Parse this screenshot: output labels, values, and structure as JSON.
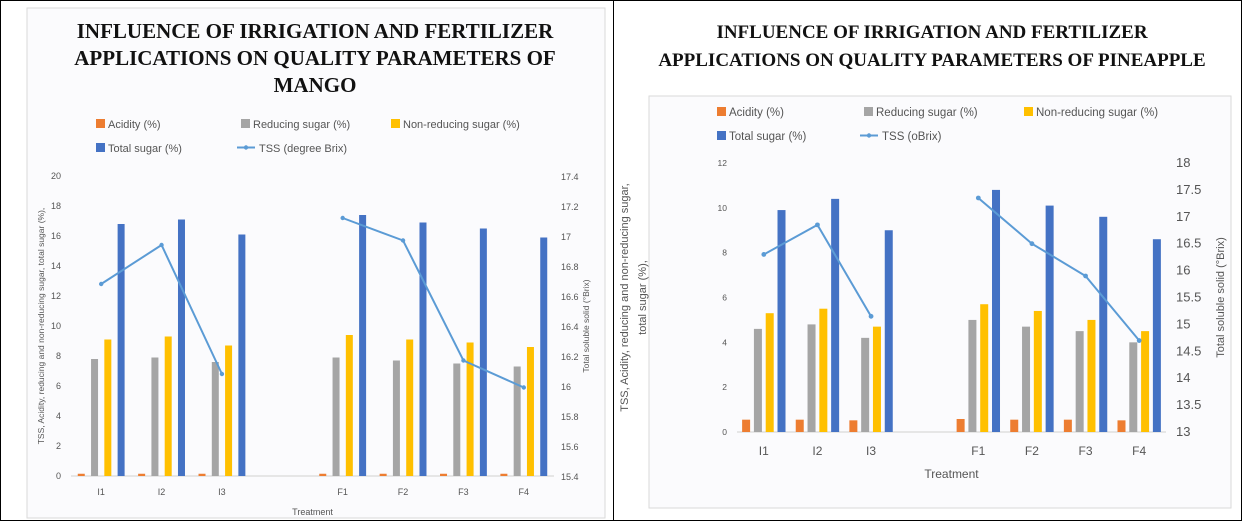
{
  "chart_data": [
    {
      "type": "bar",
      "title": "INFLUENCE OF IRRIGATION AND FERTILIZER APPLICATIONS ON QUALITY PARAMETERS OF MANGO",
      "title_lines": [
        "INFLUENCE OF IRRIGATION AND FERTILIZER",
        "APPLICATIONS ON QUALITY PARAMETERS OF",
        "MANGO"
      ],
      "xlabel": "Treatment",
      "ylabel": "TSS, Acidity, reducing and non-reducing sugar, total sugar (%),",
      "y2label": "Total soluble solid (°Brix)",
      "ylim": [
        0,
        20
      ],
      "y_ticks": [
        "0",
        "2",
        "4",
        "6",
        "8",
        "10",
        "12",
        "14",
        "16",
        "18",
        "20"
      ],
      "y2lim": [
        15.4,
        17.4
      ],
      "y2_ticks": [
        "15.4",
        "15.6",
        "15.8",
        "16",
        "16.2",
        "16.4",
        "16.6",
        "16.8",
        "17",
        "17.2",
        "17.4"
      ],
      "categories": [
        "I1",
        "I2",
        "I3",
        "",
        "F1",
        "F2",
        "F3",
        "F4"
      ],
      "grid": false,
      "legend_position": "top",
      "series": [
        {
          "name": "Acidity (%)",
          "kind": "bar",
          "color": "#ED7D31",
          "values": [
            0.15,
            0.15,
            0.15,
            null,
            0.15,
            0.15,
            0.15,
            0.15
          ]
        },
        {
          "name": "Reducing sugar (%)",
          "kind": "bar",
          "color": "#A5A5A5",
          "values": [
            7.8,
            7.9,
            7.6,
            null,
            7.9,
            7.7,
            7.5,
            7.3
          ]
        },
        {
          "name": "Non-reducing sugar (%)",
          "kind": "bar",
          "color": "#FFC000",
          "values": [
            9.1,
            9.3,
            8.7,
            null,
            9.4,
            9.1,
            8.9,
            8.6
          ]
        },
        {
          "name": "Total sugar (%)",
          "kind": "bar",
          "color": "#4472C4",
          "values": [
            16.8,
            17.1,
            16.1,
            null,
            17.4,
            16.9,
            16.5,
            15.9
          ]
        },
        {
          "name": "TSS (degree Brix)",
          "kind": "line",
          "axis": "right",
          "color": "#5B9BD5",
          "values": [
            16.68,
            16.94,
            16.08,
            null,
            17.12,
            16.97,
            16.17,
            15.99
          ]
        }
      ]
    },
    {
      "type": "bar",
      "title": "INFLUENCE OF IRRIGATION AND FERTILIZER APPLICATIONS ON QUALITY PARAMETERS OF PINEAPPLE",
      "title_lines": [
        "INFLUENCE OF IRRIGATION AND FERTILIZER",
        "APPLICATIONS ON QUALITY PARAMETERS OF PINEAPPLE"
      ],
      "xlabel": "Treatment",
      "ylabel_lines": [
        "TSS, Acidity, reducing and non-reducing sugar,",
        "total sugar (%),"
      ],
      "y2label": "Total soluble solid (°Brix)",
      "ylim": [
        0,
        12
      ],
      "y_ticks": [
        "0",
        "2",
        "4",
        "6",
        "8",
        "10",
        "12"
      ],
      "y2lim": [
        13,
        18
      ],
      "y2_ticks": [
        "13",
        "13.5",
        "14",
        "14.5",
        "15",
        "15.5",
        "16",
        "16.5",
        "17",
        "17.5",
        "18"
      ],
      "categories": [
        "I1",
        "I2",
        "I3",
        "",
        "F1",
        "F2",
        "F3",
        "F4"
      ],
      "grid": false,
      "legend_position": "top",
      "series": [
        {
          "name": "Acidity (%)",
          "kind": "bar",
          "color": "#ED7D31",
          "values": [
            0.55,
            0.55,
            0.52,
            null,
            0.58,
            0.55,
            0.55,
            0.52
          ]
        },
        {
          "name": "Reducing sugar (%)",
          "kind": "bar",
          "color": "#A5A5A5",
          "values": [
            4.6,
            4.8,
            4.2,
            null,
            5.0,
            4.7,
            4.5,
            4.0
          ]
        },
        {
          "name": "Non-reducing sugar (%)",
          "kind": "bar",
          "color": "#FFC000",
          "values": [
            5.3,
            5.5,
            4.7,
            null,
            5.7,
            5.4,
            5.0,
            4.5
          ]
        },
        {
          "name": "Total sugar (%)",
          "kind": "bar",
          "color": "#4472C4",
          "values": [
            9.9,
            10.4,
            9.0,
            null,
            10.8,
            10.1,
            9.6,
            8.6
          ]
        },
        {
          "name": "TSS (oBrix)",
          "kind": "line",
          "axis": "right",
          "color": "#5B9BD5",
          "values": [
            16.3,
            16.85,
            15.15,
            null,
            17.35,
            16.5,
            15.9,
            14.7
          ]
        }
      ]
    }
  ]
}
